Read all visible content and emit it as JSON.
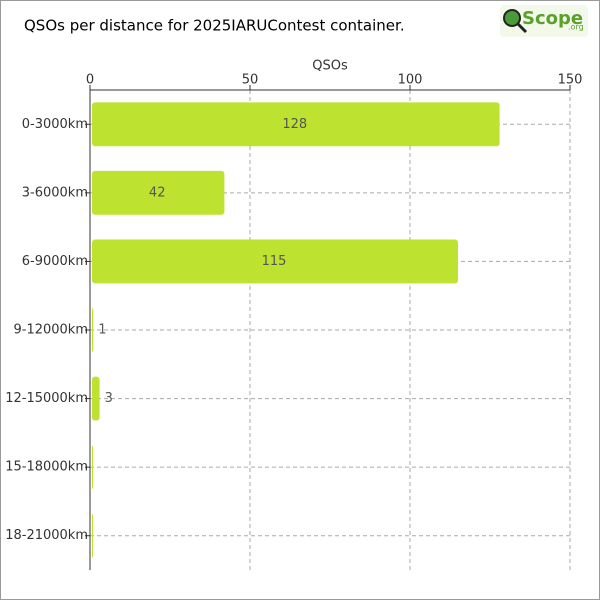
{
  "chart_data": {
    "type": "bar",
    "orientation": "horizontal",
    "title": "QSOs per distance for 2025IARUContest container.",
    "logo": {
      "text": "Scope",
      "suffix": ".org"
    },
    "x_label": "QSOs",
    "categories": [
      "0-3000km",
      "3-6000km",
      "6-9000km",
      "9-12000km",
      "12-15000km",
      "15-18000km",
      "18-21000km"
    ],
    "values": [
      128,
      42,
      115,
      1,
      3,
      0,
      0
    ],
    "color": "#bde22f",
    "xlim": [
      0,
      150
    ],
    "xticks": [
      0,
      50,
      100,
      150
    ],
    "grid": true
  }
}
